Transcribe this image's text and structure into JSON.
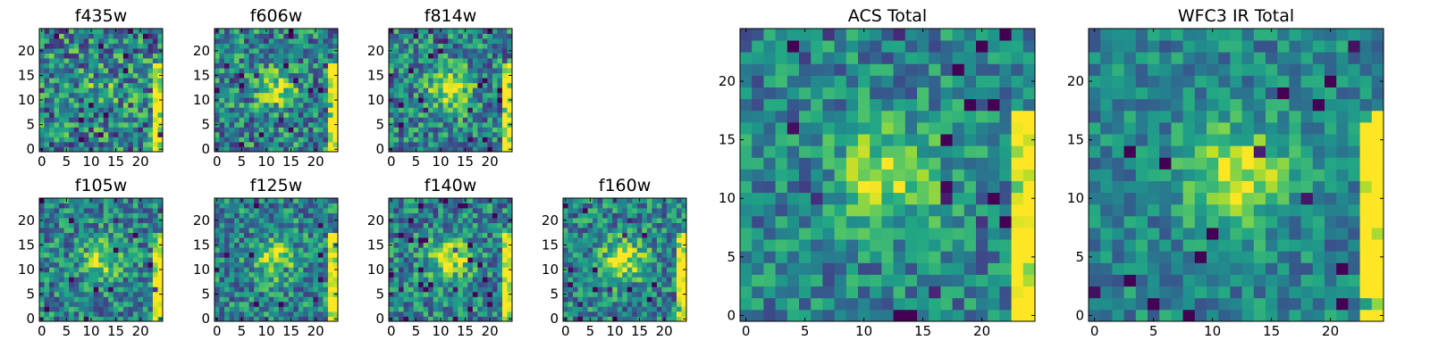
{
  "figure": {
    "description_note": "Grid of heatmap thumbnails of an astronomical source in several HST filters plus two summed images"
  },
  "chart_data": [
    {
      "type": "heatmap",
      "title": "f435w",
      "colormap": "viridis",
      "grid": [
        25,
        25
      ],
      "xlim": [
        0,
        24
      ],
      "ylim": [
        0,
        24
      ],
      "xticks": [
        0,
        5,
        10,
        15,
        20
      ],
      "yticks": [
        0,
        5,
        10,
        15,
        20
      ],
      "xtick_labels": [
        "0",
        "5",
        "10",
        "15",
        "20"
      ],
      "ytick_labels": [
        "0",
        "5",
        "10",
        "15",
        "20"
      ],
      "features": {
        "center_blob": 0.15,
        "right_edge": 0.7,
        "noise": 0.45,
        "seed": 11
      }
    },
    {
      "type": "heatmap",
      "title": "f606w",
      "colormap": "viridis",
      "grid": [
        25,
        25
      ],
      "xlim": [
        0,
        24
      ],
      "ylim": [
        0,
        24
      ],
      "xticks": [
        0,
        5,
        10,
        15,
        20
      ],
      "yticks": [
        0,
        5,
        10,
        15,
        20
      ],
      "xtick_labels": [
        "0",
        "5",
        "10",
        "15",
        "20"
      ],
      "ytick_labels": [
        "0",
        "5",
        "10",
        "15",
        "20"
      ],
      "features": {
        "center_blob": 0.35,
        "right_edge": 0.75,
        "noise": 0.4,
        "seed": 23
      }
    },
    {
      "type": "heatmap",
      "title": "f814w",
      "colormap": "viridis",
      "grid": [
        25,
        25
      ],
      "xlim": [
        0,
        24
      ],
      "ylim": [
        0,
        24
      ],
      "xticks": [
        0,
        5,
        10,
        15,
        20
      ],
      "yticks": [
        0,
        5,
        10,
        15,
        20
      ],
      "xtick_labels": [
        "0",
        "5",
        "10",
        "15",
        "20"
      ],
      "ytick_labels": [
        "0",
        "5",
        "10",
        "15",
        "20"
      ],
      "features": {
        "center_blob": 0.45,
        "right_edge": 0.75,
        "noise": 0.38,
        "seed": 37
      }
    },
    {
      "type": "heatmap",
      "title": "f105w",
      "colormap": "viridis",
      "grid": [
        25,
        25
      ],
      "xlim": [
        0,
        24
      ],
      "ylim": [
        0,
        24
      ],
      "xticks": [
        0,
        5,
        10,
        15,
        20
      ],
      "yticks": [
        0,
        5,
        10,
        15,
        20
      ],
      "xtick_labels": [
        "0",
        "5",
        "10",
        "15",
        "20"
      ],
      "ytick_labels": [
        "0",
        "5",
        "10",
        "15",
        "20"
      ],
      "features": {
        "center_blob": 0.35,
        "right_edge": 0.7,
        "noise": 0.35,
        "seed": 41
      }
    },
    {
      "type": "heatmap",
      "title": "f125w",
      "colormap": "viridis",
      "grid": [
        25,
        25
      ],
      "xlim": [
        0,
        24
      ],
      "ylim": [
        0,
        24
      ],
      "xticks": [
        0,
        5,
        10,
        15,
        20
      ],
      "yticks": [
        0,
        5,
        10,
        15,
        20
      ],
      "xtick_labels": [
        "0",
        "5",
        "10",
        "15",
        "20"
      ],
      "ytick_labels": [
        "0",
        "5",
        "10",
        "15",
        "20"
      ],
      "features": {
        "center_blob": 0.4,
        "right_edge": 0.7,
        "noise": 0.35,
        "seed": 53
      }
    },
    {
      "type": "heatmap",
      "title": "f140w",
      "colormap": "viridis",
      "grid": [
        25,
        25
      ],
      "xlim": [
        0,
        24
      ],
      "ylim": [
        0,
        24
      ],
      "xticks": [
        0,
        5,
        10,
        15,
        20
      ],
      "yticks": [
        0,
        5,
        10,
        15,
        20
      ],
      "xtick_labels": [
        "0",
        "5",
        "10",
        "15",
        "20"
      ],
      "ytick_labels": [
        "0",
        "5",
        "10",
        "15",
        "20"
      ],
      "features": {
        "center_blob": 0.45,
        "right_edge": 0.7,
        "noise": 0.35,
        "seed": 67
      }
    },
    {
      "type": "heatmap",
      "title": "f160w",
      "colormap": "viridis",
      "grid": [
        25,
        25
      ],
      "xlim": [
        0,
        24
      ],
      "ylim": [
        0,
        24
      ],
      "xticks": [
        0,
        5,
        10,
        15,
        20
      ],
      "yticks": [
        0,
        5,
        10,
        15,
        20
      ],
      "xtick_labels": [
        "0",
        "5",
        "10",
        "15",
        "20"
      ],
      "ytick_labels": [
        "0",
        "5",
        "10",
        "15",
        "20"
      ],
      "features": {
        "center_blob": 0.5,
        "right_edge": 0.8,
        "noise": 0.35,
        "seed": 79
      }
    },
    {
      "type": "heatmap",
      "title": "ACS Total",
      "colormap": "viridis",
      "grid": [
        25,
        25
      ],
      "xlim": [
        0,
        24
      ],
      "ylim": [
        0,
        24
      ],
      "xticks": [
        0,
        5,
        10,
        15,
        20
      ],
      "yticks": [
        0,
        5,
        10,
        15,
        20
      ],
      "xtick_labels": [
        "0",
        "5",
        "10",
        "15",
        "20"
      ],
      "ytick_labels": [
        "0",
        "5",
        "10",
        "15",
        "20"
      ],
      "features": {
        "center_blob": 0.45,
        "right_edge": 0.85,
        "noise": 0.3,
        "seed": 97
      }
    },
    {
      "type": "heatmap",
      "title": "WFC3 IR Total",
      "colormap": "viridis",
      "grid": [
        25,
        25
      ],
      "xlim": [
        0,
        24
      ],
      "ylim": [
        0,
        24
      ],
      "xticks": [
        0,
        5,
        10,
        15,
        20
      ],
      "yticks": [
        0,
        5,
        10,
        15,
        20
      ],
      "xtick_labels": [
        "0",
        "5",
        "10",
        "15",
        "20"
      ],
      "ytick_labels": [
        "0",
        "5",
        "10",
        "15",
        "20"
      ],
      "features": {
        "center_blob": 0.5,
        "right_edge": 0.85,
        "noise": 0.25,
        "seed": 113
      }
    }
  ]
}
